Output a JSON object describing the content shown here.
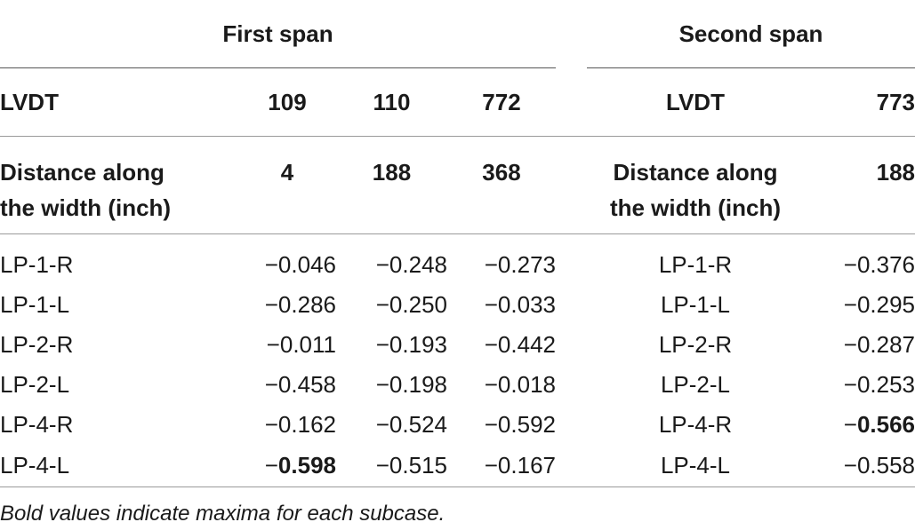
{
  "header": {
    "first_span": "First span",
    "second_span": "Second span"
  },
  "lvdt_row": {
    "label_first": "LVDT",
    "first_ids": [
      "109",
      "110",
      "772"
    ],
    "label_second": "LVDT",
    "second_ids": [
      "773"
    ]
  },
  "distance_row": {
    "label_first_line1": "Distance along",
    "label_first_line2": "the width (inch)",
    "first_values": [
      "4",
      "188",
      "368"
    ],
    "label_second_line1": "Distance along",
    "label_second_line2": "the width (inch)",
    "second_values": [
      "188"
    ]
  },
  "rows": [
    {
      "case": "LP-1-R",
      "v109": "−0.046",
      "v110": "−0.248",
      "v772": "−0.273",
      "case2": "LP-1-R",
      "v773": "−0.376"
    },
    {
      "case": "LP-1-L",
      "v109": "−0.286",
      "v110": "−0.250",
      "v772": "−0.033",
      "case2": "LP-1-L",
      "v773": "−0.295"
    },
    {
      "case": "LP-2-R",
      "v109": "−0.011",
      "v110": "−0.193",
      "v772": "−0.442",
      "case2": "LP-2-R",
      "v773": "−0.287"
    },
    {
      "case": "LP-2-L",
      "v109": "−0.458",
      "v110": "−0.198",
      "v772": "−0.018",
      "case2": "LP-2-L",
      "v773": "−0.253"
    },
    {
      "case": "LP-4-R",
      "v109": "−0.162",
      "v110": "−0.524",
      "v772": "−0.592",
      "case2": "LP-4-R",
      "v773_sign": "−",
      "v773_bold": "0.566"
    },
    {
      "case": "LP-4-L",
      "v109_sign": "−",
      "v109_bold": "0.598",
      "v110": "−0.515",
      "v772": "−0.167",
      "case2": "LP-4-L",
      "v773": "−0.558"
    }
  ],
  "footnote": "Bold values indicate maxima for each subcase."
}
